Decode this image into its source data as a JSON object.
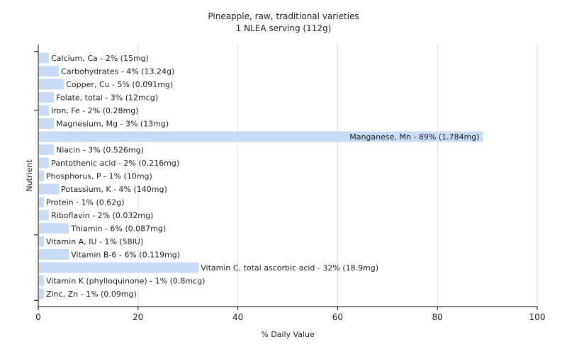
{
  "chart_data": {
    "type": "bar",
    "orientation": "horizontal",
    "title": "Pineapple, raw, traditional varieties",
    "subtitle": "1 NLEA serving (112g)",
    "xlabel": "% Daily Value",
    "ylabel": "Nutrient",
    "xlim": [
      0,
      100
    ],
    "xticks": [
      0,
      20,
      40,
      60,
      80,
      100
    ],
    "grid": true,
    "bar_color": "#c8dcf8",
    "categories": [
      "Calcium, Ca",
      "Carbohydrates",
      "Copper, Cu",
      "Folate, total",
      "Iron, Fe",
      "Magnesium, Mg",
      "Manganese, Mn",
      "Niacin",
      "Pantothenic acid",
      "Phosphorus, P",
      "Potassium, K",
      "Protein",
      "Riboflavin",
      "Thiamin",
      "Vitamin A, IU",
      "Vitamin B-6",
      "Vitamin C, total ascorbic acid",
      "Vitamin K (phylloquinone)",
      "Zinc, Zn"
    ],
    "values": [
      2,
      4,
      5,
      3,
      2,
      3,
      89,
      3,
      2,
      1,
      4,
      1,
      2,
      6,
      1,
      6,
      32,
      1,
      1
    ],
    "labels": [
      "Calcium, Ca - 2% (15mg)",
      "Carbohydrates - 4% (13.24g)",
      "Copper, Cu - 5% (0.091mg)",
      "Folate, total - 3% (12mcg)",
      "Iron, Fe - 2% (0.28mg)",
      "Magnesium, Mg - 3% (13mg)",
      "Manganese, Mn - 89% (1.784mg)",
      "Niacin - 3% (0.526mg)",
      "Pantothenic acid - 2% (0.216mg)",
      "Phosphorus, P - 1% (10mg)",
      "Potassium, K - 4% (140mg)",
      "Protein - 1% (0.62g)",
      "Riboflavin - 2% (0.032mg)",
      "Thiamin - 6% (0.087mg)",
      "Vitamin A, IU - 1% (58IU)",
      "Vitamin B-6 - 6% (0.119mg)",
      "Vitamin C, total ascorbic acid - 32% (18.9mg)",
      "Vitamin K (phylloquinone) - 1% (0.8mcg)",
      "Zinc, Zn - 1% (0.09mg)"
    ]
  }
}
